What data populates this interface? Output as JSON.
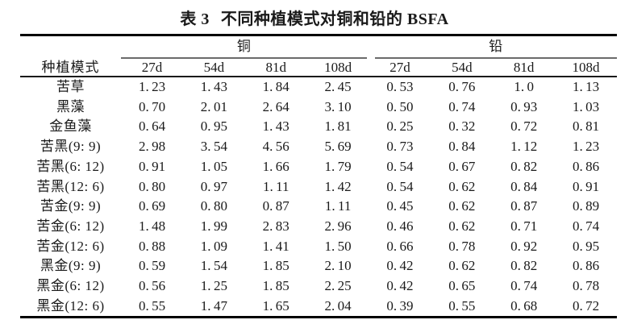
{
  "figure": {
    "title": {
      "label": "表 3",
      "caption": "不同种植模式对铜和铅的 BSFA"
    }
  },
  "table": {
    "row_header": "种植模式",
    "groups": [
      {
        "label": "铜",
        "columns": [
          "27d",
          "54d",
          "81d",
          "108d"
        ]
      },
      {
        "label": "铅",
        "columns": [
          "27d",
          "54d",
          "81d",
          "108d"
        ]
      }
    ],
    "rows": [
      {
        "label": "苦草",
        "cu": [
          "1.23",
          "1.43",
          "1.84",
          "2.45"
        ],
        "pb": [
          "0.53",
          "0.76",
          "1.0",
          "1.13"
        ]
      },
      {
        "label": "黑藻",
        "cu": [
          "0.70",
          "2.01",
          "2.64",
          "3.10"
        ],
        "pb": [
          "0.50",
          "0.74",
          "0.93",
          "1.03"
        ]
      },
      {
        "label": "金鱼藻",
        "cu": [
          "0.64",
          "0.95",
          "1.43",
          "1.81"
        ],
        "pb": [
          "0.25",
          "0.32",
          "0.72",
          "0.81"
        ]
      },
      {
        "label": "苦黑(9: 9)",
        "cu": [
          "2.98",
          "3.54",
          "4.56",
          "5.69"
        ],
        "pb": [
          "0.73",
          "0.84",
          "1.12",
          "1.23"
        ]
      },
      {
        "label": "苦黑(6: 12)",
        "cu": [
          "0.91",
          "1.05",
          "1.66",
          "1.79"
        ],
        "pb": [
          "0.54",
          "0.67",
          "0.82",
          "0.86"
        ]
      },
      {
        "label": "苦黑(12: 6)",
        "cu": [
          "0.80",
          "0.97",
          "1.11",
          "1.42"
        ],
        "pb": [
          "0.54",
          "0.62",
          "0.84",
          "0.91"
        ]
      },
      {
        "label": "苦金(9: 9)",
        "cu": [
          "0.69",
          "0.80",
          "0.87",
          "1.11"
        ],
        "pb": [
          "0.45",
          "0.62",
          "0.87",
          "0.89"
        ]
      },
      {
        "label": "苦金(6: 12)",
        "cu": [
          "1.48",
          "1.99",
          "2.83",
          "2.96"
        ],
        "pb": [
          "0.46",
          "0.62",
          "0.71",
          "0.74"
        ]
      },
      {
        "label": "苦金(12: 6)",
        "cu": [
          "0.88",
          "1.09",
          "1.41",
          "1.50"
        ],
        "pb": [
          "0.66",
          "0.78",
          "0.92",
          "0.95"
        ]
      },
      {
        "label": "黑金(9: 9)",
        "cu": [
          "0.59",
          "1.54",
          "1.85",
          "2.10"
        ],
        "pb": [
          "0.42",
          "0.62",
          "0.82",
          "0.86"
        ]
      },
      {
        "label": "黑金(6: 12)",
        "cu": [
          "0.56",
          "1.25",
          "1.85",
          "2.25"
        ],
        "pb": [
          "0.42",
          "0.65",
          "0.74",
          "0.78"
        ]
      },
      {
        "label": "黑金(12: 6)",
        "cu": [
          "0.55",
          "1.47",
          "1.65",
          "2.04"
        ],
        "pb": [
          "0.39",
          "0.55",
          "0.68",
          "0.72"
        ]
      }
    ]
  },
  "colors": {
    "text": "#1a1a1a",
    "rule_heavy": "#000000",
    "rule_light": "#6b6b6b",
    "background": "#ffffff"
  }
}
